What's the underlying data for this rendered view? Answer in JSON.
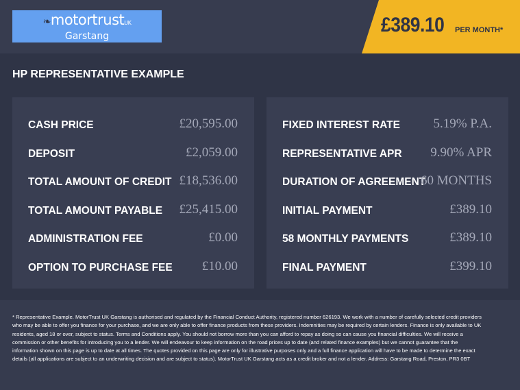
{
  "header": {
    "logo": {
      "brand": "motortrust",
      "suffix": "UK",
      "location": "Garstang"
    },
    "price": {
      "amount": "£389.10",
      "label": "PER MONTH*"
    },
    "colors": {
      "accent": "#f2b523",
      "logo_bg": "#64a0f0"
    }
  },
  "title": "HP REPRESENTATIVE EXAMPLE",
  "left_panel": [
    {
      "label": "CASH PRICE",
      "value": "£20,595.00"
    },
    {
      "label": "DEPOSIT",
      "value": "£2,059.00"
    },
    {
      "label": "TOTAL AMOUNT OF CREDIT",
      "value": "£18,536.00"
    },
    {
      "label": "TOTAL AMOUNT PAYABLE",
      "value": "£25,415.00"
    },
    {
      "label": "ADMINISTRATION FEE",
      "value": "£0.00"
    },
    {
      "label": "OPTION TO PURCHASE FEE",
      "value": "£10.00"
    }
  ],
  "right_panel": [
    {
      "label": "FIXED INTEREST RATE",
      "value": "5.19% P.A."
    },
    {
      "label": "REPRESENTATIVE APR",
      "value": "9.90% APR"
    },
    {
      "label": "DURATION OF AGREEMENT",
      "value": "60 MONTHS"
    },
    {
      "label": "INITIAL PAYMENT",
      "value": "£389.10"
    },
    {
      "label": "58 MONTHLY PAYMENTS",
      "value": "£389.10"
    },
    {
      "label": "FINAL PAYMENT",
      "value": "£399.10"
    }
  ],
  "footer": {
    "disclaimer": "* Representative Example. MotorTrust UK Garstang is authorised and regulated by the Financial Conduct Authority, registered number 626193. We work with a number of carefully selected credit providers who may be able to offer you finance for your purchase, and we are only able to offer finance products from these providers. Indemnities may be required by certain lenders. Finance is only available to UK residents, aged 18 or over, subject to status. Terms and Conditions apply. You should not borrow more than you can afford to repay as doing so can cause you financial difficulties. We will receive a commission or other benefits for introducing you to a lender. We will endeavour to keep information on the road prices up to date (and related finance examples) but we cannot guarantee that the information shown on this page is up to date at all times. The quotes provided on this page are only for illustrative purposes only and a full finance application will have to be made to determine the exact details (all applications are subject to an underwriting decision and are subject to status). MotorTrust UK Garstang acts as a credit broker and not a lender. Address: Garstang Road, Preston, PR3 0BT"
  }
}
